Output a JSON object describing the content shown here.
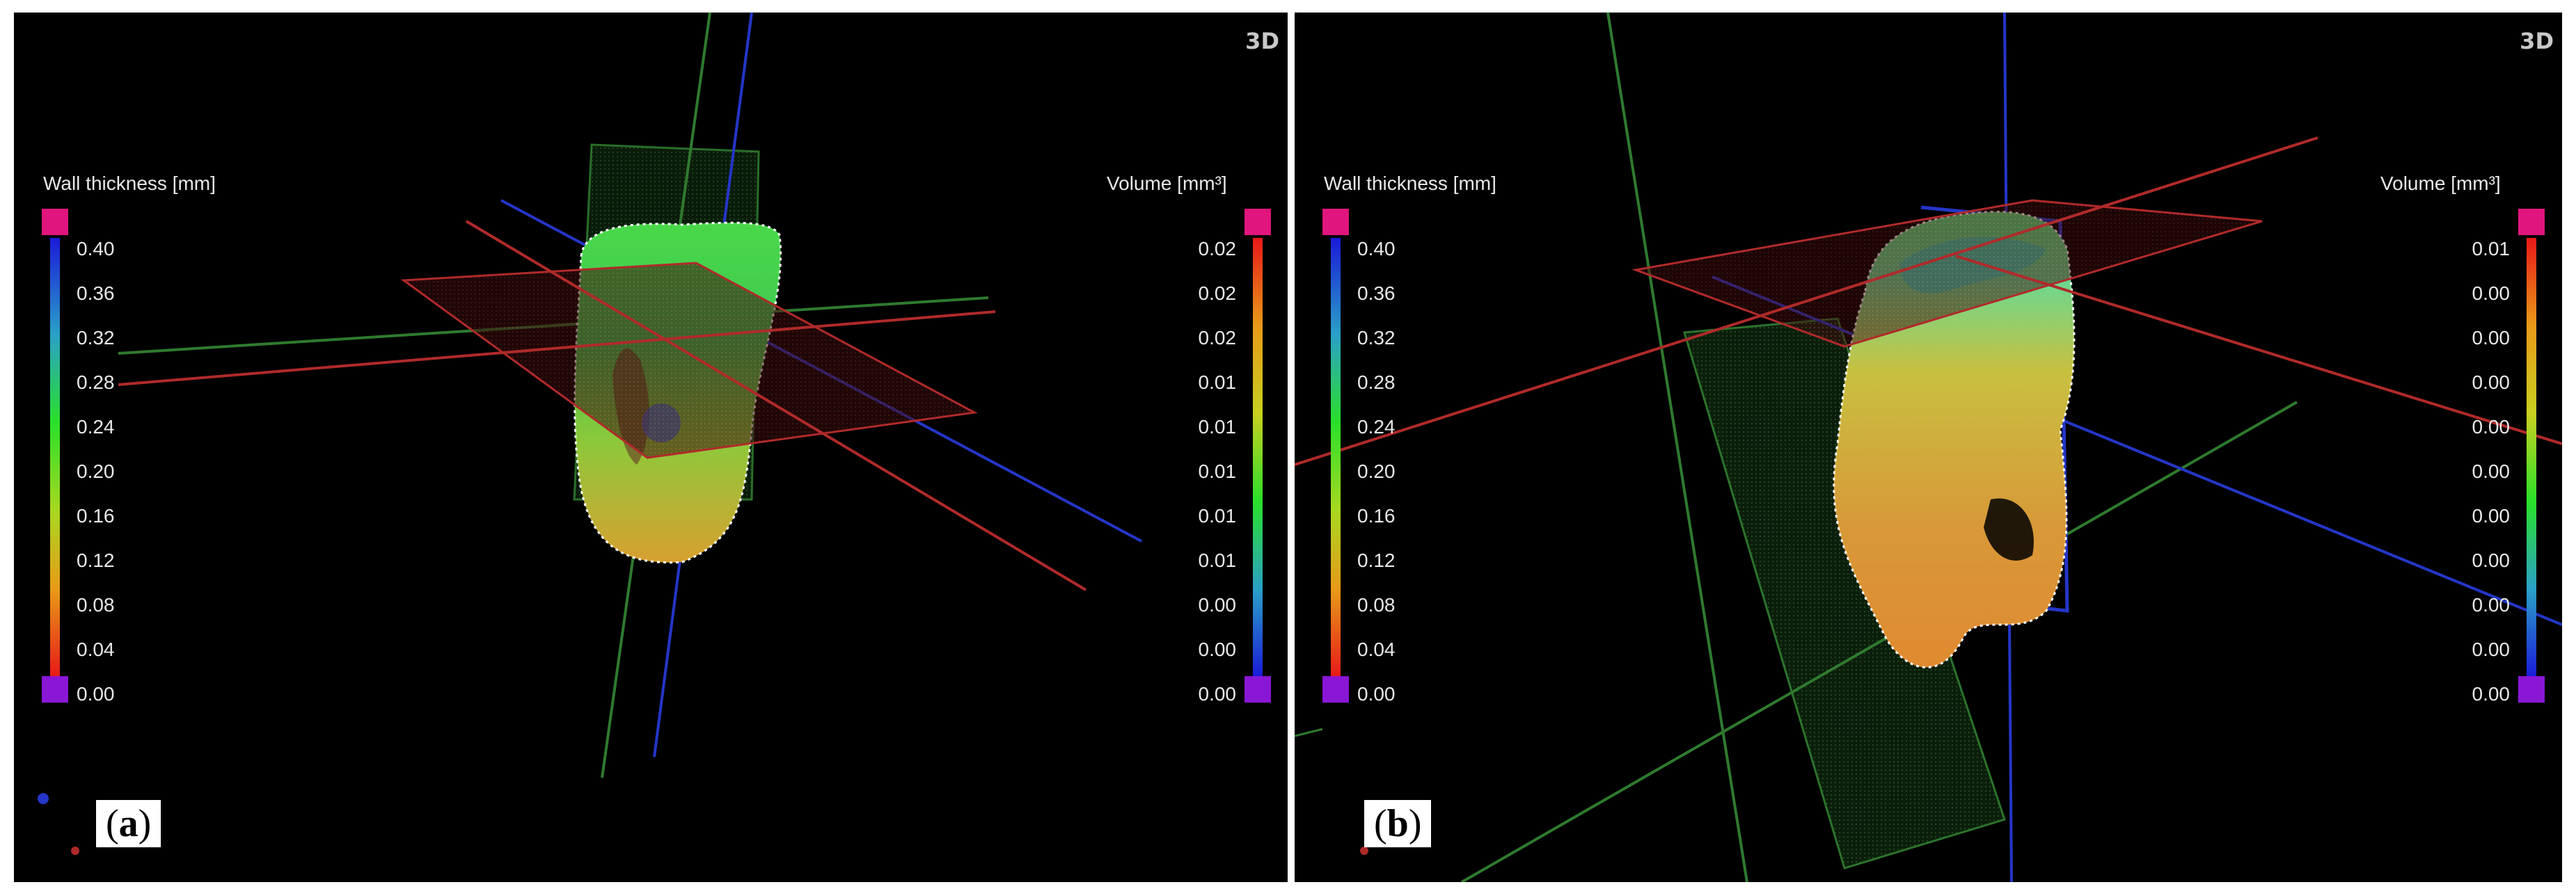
{
  "panels": {
    "a": {
      "label_open": "(",
      "label_letter": "a",
      "label_close": ")",
      "view_tag": "3D",
      "wall": {
        "title": "Wall thickness [mm]",
        "ticks": [
          "0.40",
          "0.36",
          "0.32",
          "0.28",
          "0.24",
          "0.20",
          "0.16",
          "0.12",
          "0.08",
          "0.04",
          "0.00"
        ]
      },
      "volume": {
        "title": "Volume [mm³]",
        "ticks": [
          "0.02",
          "0.02",
          "0.02",
          "0.01",
          "0.01",
          "0.01",
          "0.01",
          "0.01",
          "0.00",
          "0.00",
          "0.00"
        ]
      }
    },
    "b": {
      "label_open": "(",
      "label_letter": "b",
      "label_close": ")",
      "view_tag": "3D",
      "wall": {
        "title": "Wall thickness [mm]",
        "ticks": [
          "0.40",
          "0.36",
          "0.32",
          "0.28",
          "0.24",
          "0.20",
          "0.16",
          "0.12",
          "0.08",
          "0.04",
          "0.00"
        ]
      },
      "volume": {
        "title": "Volume [mm³]",
        "ticks": [
          "0.01",
          "0.00",
          "0.00",
          "0.00",
          "0.00",
          "0.00",
          "0.00",
          "0.00",
          "0.00",
          "0.00",
          "0.00"
        ]
      }
    }
  },
  "colors": {
    "background": "#000000",
    "plane_red": "#b02a2a",
    "plane_green": "#2f7a2f",
    "plane_blue": "#2536c8",
    "cap_top": "#e0157d",
    "cap_bottom": "#8a16d6",
    "text": "#e8e8e8"
  }
}
